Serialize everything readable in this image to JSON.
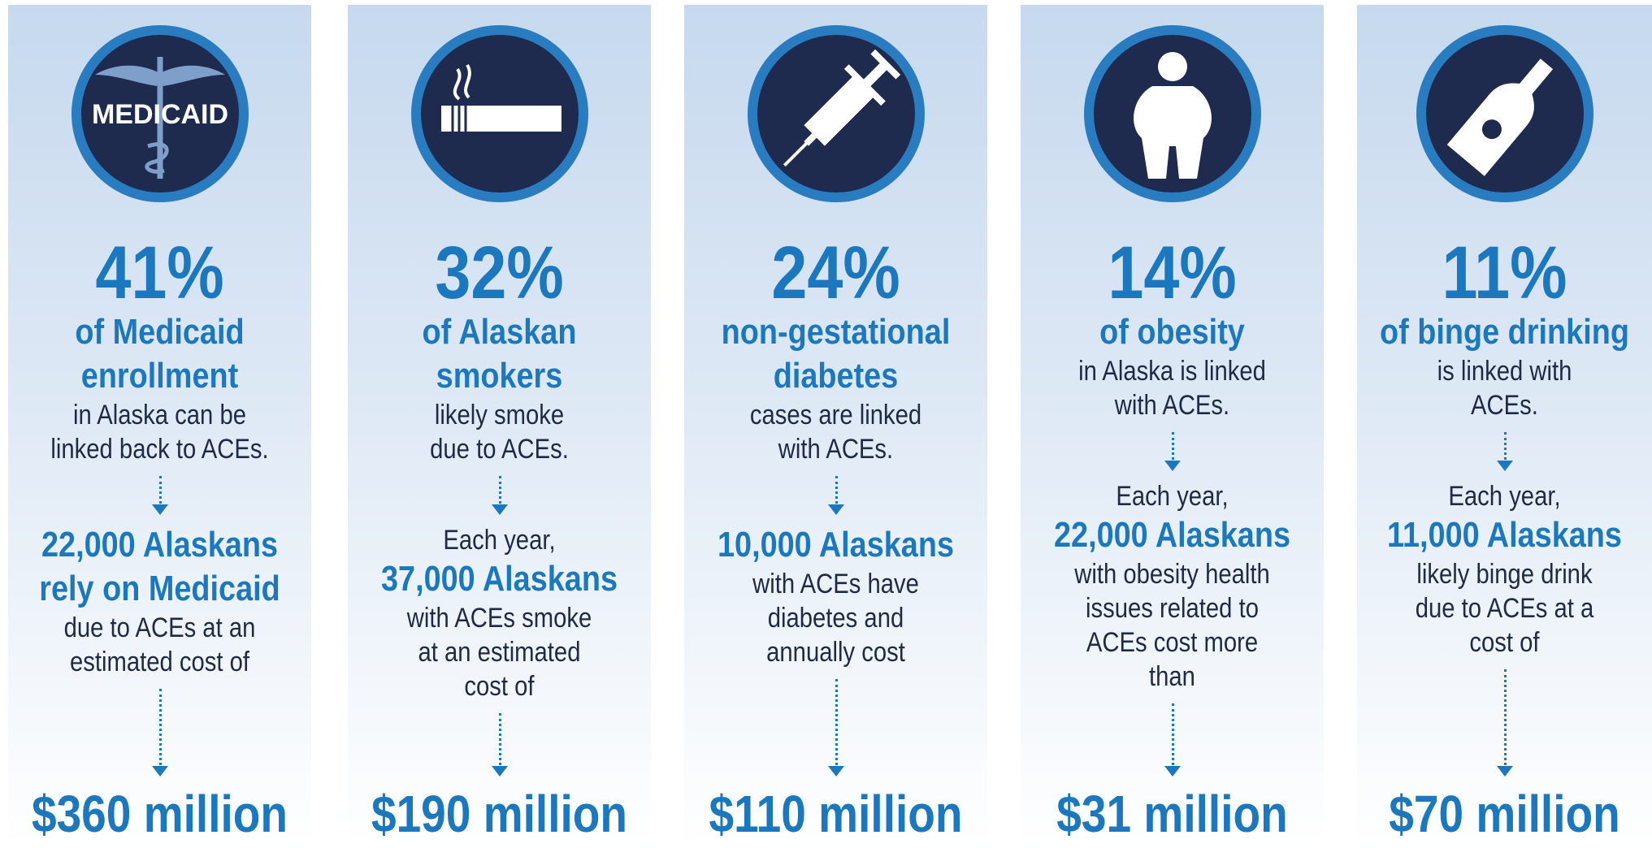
{
  "columns": [
    {
      "icon_text": "MEDICAID",
      "percent": "41%",
      "label": [
        "of Medicaid",
        "enrollment"
      ],
      "body": [
        "in Alaska can be",
        "linked back to ACEs."
      ],
      "detail_bold": [
        "22,000 Alaskans",
        "rely on Medicaid"
      ],
      "detail": [
        "due to ACEs at an",
        "estimated cost of"
      ],
      "cost": "$360 million"
    },
    {
      "percent": "32%",
      "label": [
        "of Alaskan",
        "smokers"
      ],
      "body": [
        "likely smoke",
        "due to ACEs."
      ],
      "detail_pre": [
        "Each year,"
      ],
      "detail_bold": [
        "37,000 Alaskans"
      ],
      "detail": [
        "with ACEs smoke",
        "at an estimated",
        "cost of"
      ],
      "cost": "$190 million"
    },
    {
      "percent": "24%",
      "label": [
        "non-gestational",
        "diabetes"
      ],
      "body": [
        "cases are linked",
        "with ACEs."
      ],
      "detail_bold": [
        "10,000 Alaskans"
      ],
      "detail": [
        "with ACEs have",
        "diabetes and",
        "annually cost"
      ],
      "cost": "$110 million"
    },
    {
      "percent": "14%",
      "label": [
        "of obesity"
      ],
      "body": [
        "in Alaska is linked",
        "with ACEs."
      ],
      "detail_pre": [
        "Each year,"
      ],
      "detail_bold": [
        "22,000 Alaskans"
      ],
      "detail": [
        "with obesity health",
        "issues related to",
        "ACEs cost more",
        "than"
      ],
      "cost": "$31 million"
    },
    {
      "percent": "11%",
      "label": [
        "of binge drinking"
      ],
      "body": [
        "is linked with",
        "ACEs."
      ],
      "detail_pre": [
        "Each year,"
      ],
      "detail_bold": [
        "11,000 Alaskans"
      ],
      "detail": [
        "likely binge drink",
        "due to ACEs at a",
        "cost of"
      ],
      "cost": "$70 million"
    }
  ]
}
